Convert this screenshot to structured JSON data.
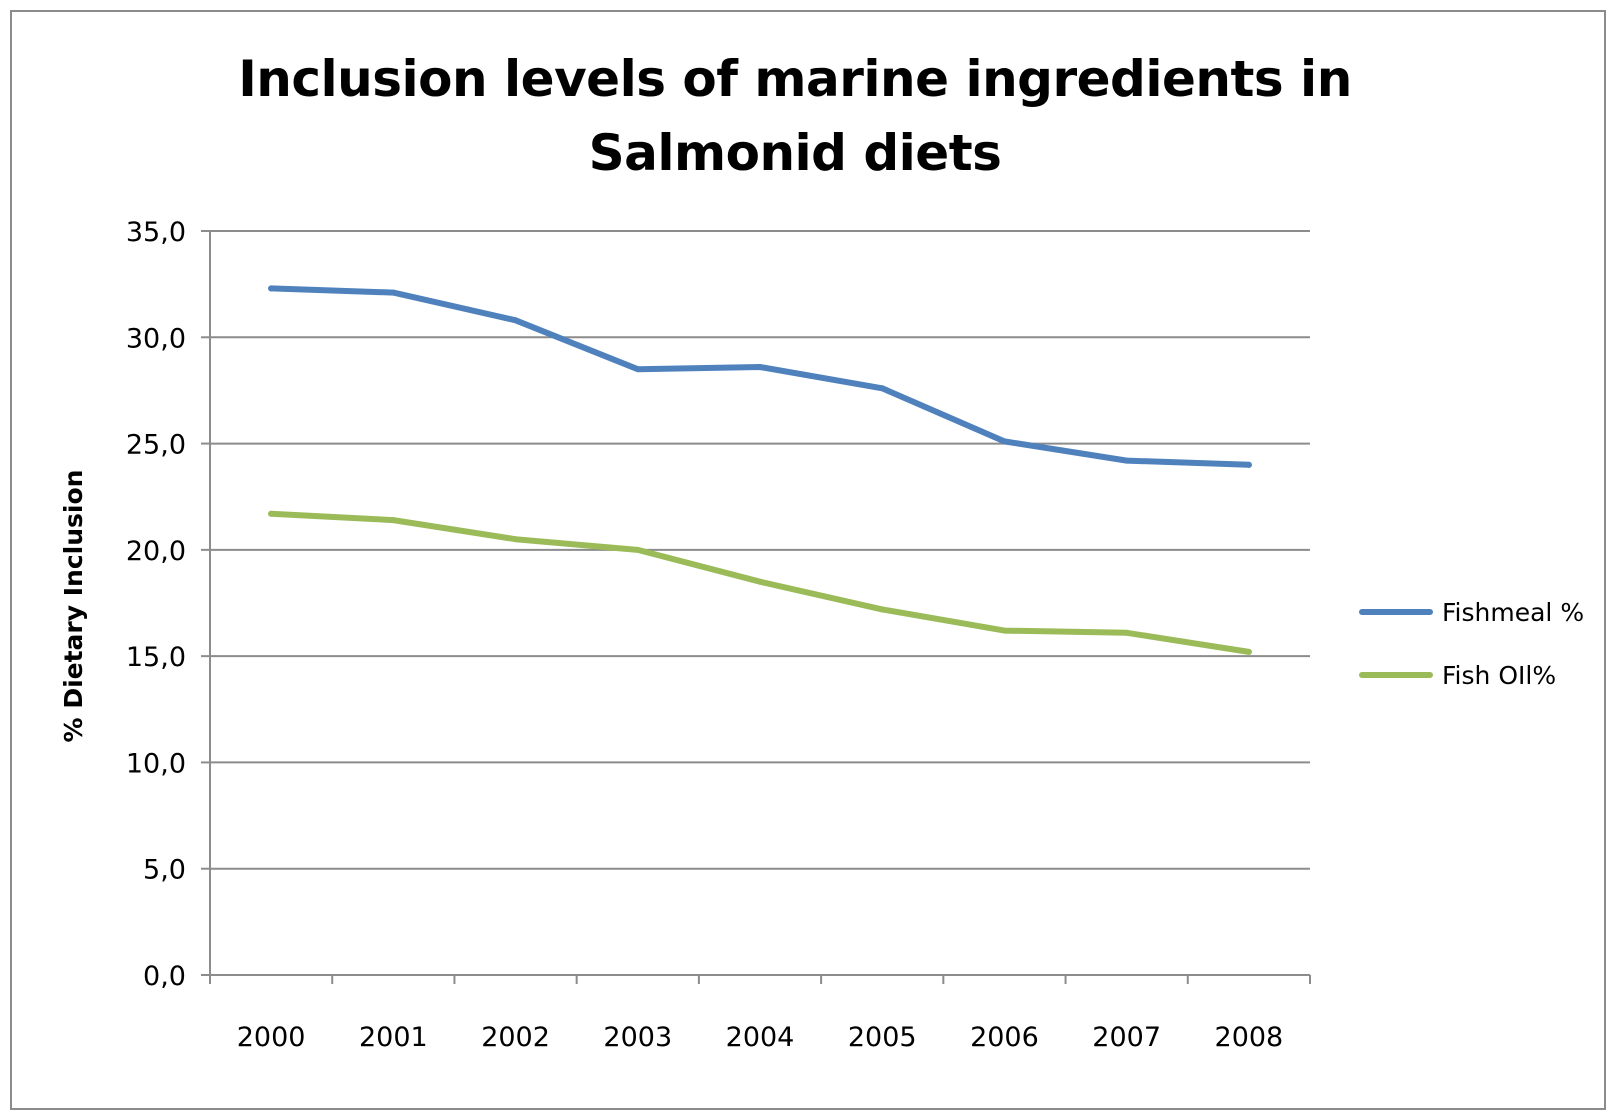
{
  "chart_data": {
    "type": "line",
    "title_lines": [
      "Inclusion levels of marine ingredients in",
      "Salmonid diets"
    ],
    "xlabel": "",
    "ylabel": "% Dietary Inclusion",
    "categories": [
      "2000",
      "2001",
      "2002",
      "2003",
      "2004",
      "2005",
      "2006",
      "2007",
      "2008"
    ],
    "ylim": [
      0,
      35
    ],
    "yticks": [
      "0,0",
      "5,0",
      "10,0",
      "15,0",
      "20,0",
      "25,0",
      "30,0",
      "35,0"
    ],
    "ytick_values": [
      0,
      5,
      10,
      15,
      20,
      25,
      30,
      35
    ],
    "grid": true,
    "legend_position": "right",
    "series": [
      {
        "name": "Fishmeal %",
        "color": "#4f81bd",
        "values": [
          32.3,
          32.1,
          30.8,
          28.5,
          28.6,
          27.6,
          25.1,
          24.2,
          24.0
        ]
      },
      {
        "name": "Fish OIl%",
        "color": "#9bbb59",
        "values": [
          21.7,
          21.4,
          20.5,
          20.0,
          18.5,
          17.2,
          16.2,
          16.1,
          15.2
        ]
      }
    ]
  }
}
